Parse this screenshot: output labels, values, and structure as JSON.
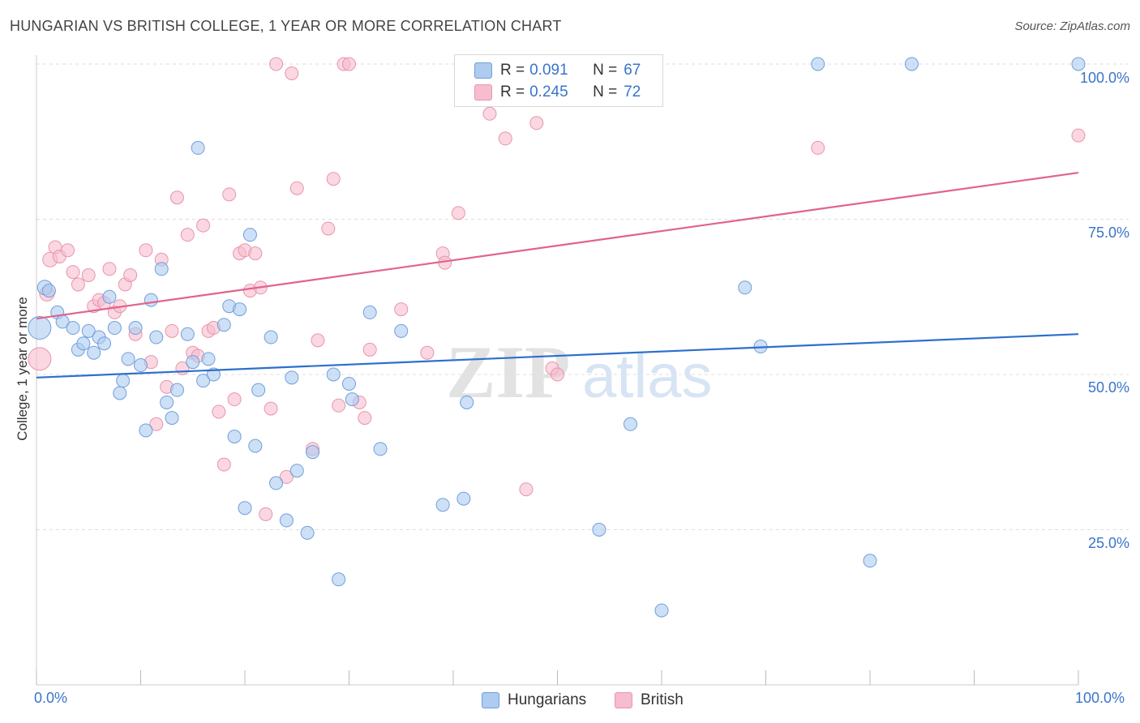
{
  "title": "HUNGARIAN VS BRITISH COLLEGE, 1 YEAR OR MORE CORRELATION CHART",
  "source": "Source: ZipAtlas.com",
  "watermark": {
    "zip": "ZIP",
    "atlas": "atlas"
  },
  "legend": {
    "rows": [
      {
        "r_label": "R =",
        "r_value": "0.091",
        "n_label": "N =",
        "n_value": "67",
        "color": "#aecbf0"
      },
      {
        "r_label": "R =",
        "r_value": "0.245",
        "n_label": "N =",
        "n_value": "72",
        "color": "#f7bccd"
      }
    ]
  },
  "bottom_legend": [
    {
      "label": "Hungarians",
      "color": "#aecbf0"
    },
    {
      "label": "British",
      "color": "#f7bccd"
    }
  ],
  "colors": {
    "hungarians_fill": "#aecbf0",
    "hungarians_stroke": "#6f9fdc",
    "hungarians_line": "#2e6fcc",
    "british_fill": "#f7bccd",
    "british_stroke": "#e895ae",
    "british_line": "#e0638c",
    "tick_text": "#3a74c9",
    "grid": "#dddddd"
  },
  "chart_data": {
    "type": "scatter",
    "title": "HUNGARIAN VS BRITISH COLLEGE, 1 YEAR OR MORE CORRELATION CHART",
    "xlabel": "",
    "ylabel": "College, 1 year or more",
    "xlim": [
      0,
      100
    ],
    "ylim": [
      0,
      100
    ],
    "x_tick_labels": [
      "0.0%",
      "100.0%"
    ],
    "y_tick_labels": [
      "100.0%",
      "75.0%",
      "50.0%",
      "25.0%"
    ],
    "y_ticks": [
      100,
      75,
      50,
      25
    ],
    "grid": "horizontal dashed",
    "legend_position": "top-center",
    "series": [
      {
        "name": "Hungarians",
        "points": [
          [
            0.3,
            57.5,
            24
          ],
          [
            0.8,
            64,
            14
          ],
          [
            1.2,
            63.5,
            12
          ],
          [
            2,
            60,
            12
          ],
          [
            2.5,
            58.5,
            12
          ],
          [
            3.5,
            57.5,
            12
          ],
          [
            4,
            54,
            12
          ],
          [
            4.5,
            55,
            12
          ],
          [
            5,
            57,
            12
          ],
          [
            5.5,
            53.5,
            12
          ],
          [
            6,
            56,
            12
          ],
          [
            6.5,
            55,
            12
          ],
          [
            7,
            62.5,
            12
          ],
          [
            7.5,
            57.5,
            12
          ],
          [
            8,
            47,
            12
          ],
          [
            8.3,
            49,
            12
          ],
          [
            8.8,
            52.5,
            12
          ],
          [
            9.5,
            57.5,
            12
          ],
          [
            10,
            51.5,
            12
          ],
          [
            10.5,
            41,
            12
          ],
          [
            11,
            62,
            12
          ],
          [
            11.5,
            56,
            12
          ],
          [
            12,
            67,
            12
          ],
          [
            12.5,
            45.5,
            12
          ],
          [
            13,
            43,
            12
          ],
          [
            13.5,
            47.5,
            12
          ],
          [
            14.5,
            56.5,
            12
          ],
          [
            15,
            52,
            12
          ],
          [
            15.5,
            86.5,
            12
          ],
          [
            16,
            49,
            12
          ],
          [
            16.5,
            52.5,
            12
          ],
          [
            17,
            50,
            12
          ],
          [
            18,
            58,
            12
          ],
          [
            18.5,
            61,
            12
          ],
          [
            19,
            40,
            12
          ],
          [
            19.5,
            60.5,
            12
          ],
          [
            20,
            28.5,
            12
          ],
          [
            20.5,
            72.5,
            12
          ],
          [
            21,
            38.5,
            12
          ],
          [
            21.3,
            47.5,
            12
          ],
          [
            22.5,
            56,
            12
          ],
          [
            23,
            32.5,
            12
          ],
          [
            24,
            26.5,
            12
          ],
          [
            24.5,
            49.5,
            12
          ],
          [
            25,
            34.5,
            12
          ],
          [
            26,
            24.5,
            12
          ],
          [
            26.5,
            37.5,
            12
          ],
          [
            28.5,
            50,
            12
          ],
          [
            29,
            17,
            12
          ],
          [
            30,
            48.5,
            12
          ],
          [
            30.3,
            46,
            12
          ],
          [
            32,
            60,
            12
          ],
          [
            33,
            38,
            12
          ],
          [
            35,
            57,
            12
          ],
          [
            39,
            29,
            12
          ],
          [
            41,
            30,
            12
          ],
          [
            41.3,
            45.5,
            12
          ],
          [
            54,
            25,
            12
          ],
          [
            57,
            42,
            12
          ],
          [
            60,
            12,
            12
          ],
          [
            68,
            64,
            12
          ],
          [
            69.5,
            54.5,
            12
          ],
          [
            75,
            100,
            12
          ],
          [
            80,
            20,
            12
          ],
          [
            84,
            100,
            12
          ],
          [
            100,
            100,
            12
          ]
        ]
      },
      {
        "name": "British",
        "points": [
          [
            0.3,
            52.5,
            24
          ],
          [
            1,
            63,
            14
          ],
          [
            1.3,
            68.5,
            14
          ],
          [
            1.8,
            70.5,
            12
          ],
          [
            2.2,
            69,
            12
          ],
          [
            3,
            70,
            12
          ],
          [
            3.5,
            66.5,
            12
          ],
          [
            4,
            64.5,
            12
          ],
          [
            5,
            66,
            12
          ],
          [
            5.5,
            61,
            12
          ],
          [
            6,
            62,
            12
          ],
          [
            6.5,
            61.5,
            12
          ],
          [
            7,
            67,
            12
          ],
          [
            7.5,
            60,
            12
          ],
          [
            8,
            61,
            12
          ],
          [
            8.5,
            64.5,
            12
          ],
          [
            9,
            66,
            12
          ],
          [
            9.5,
            56.5,
            12
          ],
          [
            10.5,
            70,
            12
          ],
          [
            11,
            52,
            12
          ],
          [
            11.5,
            42,
            12
          ],
          [
            12,
            68.5,
            12
          ],
          [
            12.5,
            48,
            12
          ],
          [
            13,
            57,
            12
          ],
          [
            13.5,
            78.5,
            12
          ],
          [
            14,
            51,
            12
          ],
          [
            14.5,
            72.5,
            12
          ],
          [
            15,
            53.5,
            12
          ],
          [
            15.5,
            53,
            12
          ],
          [
            16,
            74,
            12
          ],
          [
            16.5,
            57,
            12
          ],
          [
            17,
            57.5,
            12
          ],
          [
            17.5,
            44,
            12
          ],
          [
            18,
            35.5,
            12
          ],
          [
            18.5,
            79,
            12
          ],
          [
            19,
            46,
            12
          ],
          [
            19.5,
            69.5,
            12
          ],
          [
            20,
            70,
            12
          ],
          [
            20.5,
            63.5,
            12
          ],
          [
            21,
            69.5,
            12
          ],
          [
            21.5,
            64,
            12
          ],
          [
            22,
            27.5,
            12
          ],
          [
            22.5,
            44.5,
            12
          ],
          [
            23,
            100,
            12
          ],
          [
            24,
            33.5,
            12
          ],
          [
            24.5,
            98.5,
            12
          ],
          [
            25,
            80,
            12
          ],
          [
            26.5,
            38,
            12
          ],
          [
            27,
            55.5,
            12
          ],
          [
            28,
            73.5,
            12
          ],
          [
            28.5,
            81.5,
            12
          ],
          [
            29,
            45,
            12
          ],
          [
            29.5,
            100,
            12
          ],
          [
            30,
            100,
            12
          ],
          [
            31,
            45.5,
            12
          ],
          [
            31.5,
            43,
            12
          ],
          [
            32,
            54,
            12
          ],
          [
            35,
            60.5,
            12
          ],
          [
            37.5,
            53.5,
            12
          ],
          [
            39,
            69.5,
            12
          ],
          [
            39.2,
            68,
            12
          ],
          [
            40.5,
            76,
            12
          ],
          [
            43.5,
            92,
            12
          ],
          [
            45,
            88,
            12
          ],
          [
            47,
            31.5,
            12
          ],
          [
            48,
            90.5,
            12
          ],
          [
            49.5,
            51,
            12
          ],
          [
            50,
            50,
            12
          ],
          [
            75,
            86.5,
            12
          ],
          [
            100,
            88.5,
            12
          ]
        ]
      }
    ],
    "trend_lines": [
      {
        "series": "Hungarians",
        "x": [
          0,
          100
        ],
        "y": [
          49.5,
          56.5
        ]
      },
      {
        "series": "British",
        "x": [
          0,
          100
        ],
        "y": [
          59,
          82.5
        ]
      }
    ]
  }
}
